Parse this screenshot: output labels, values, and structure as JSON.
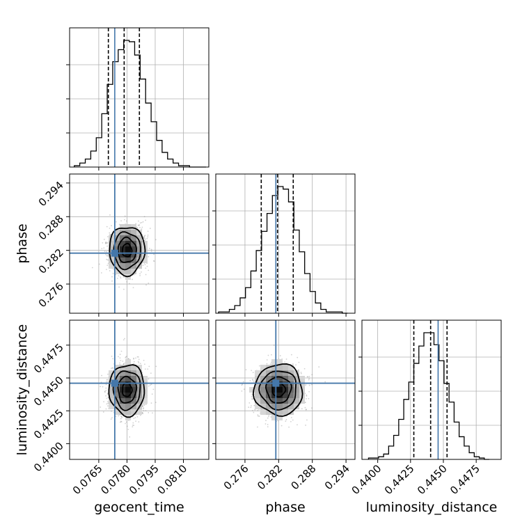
{
  "chart_data": {
    "type": "corner",
    "parameters": [
      "geocent_time",
      "phase",
      "luminosity_distance"
    ],
    "axis_labels": {
      "x": [
        "geocent_time",
        "phase",
        "luminosity_distance"
      ],
      "y_phase": "phase",
      "y_luminosity_distance": "luminosity_distance"
    },
    "ranges": {
      "geocent_time": [
        0.07495,
        0.08235
      ],
      "phase": [
        0.2708,
        0.2956
      ],
      "luminosity_distance": [
        0.4388,
        0.4494
      ]
    },
    "ticks": {
      "geocent_time": {
        "values": [
          0.0765,
          0.078,
          0.0795,
          0.081
        ],
        "labels": [
          "0.0765",
          "0.0780",
          "0.0795",
          "0.0810"
        ]
      },
      "phase": {
        "values": [
          0.276,
          0.282,
          0.288,
          0.294
        ],
        "labels": [
          "0.276",
          "0.282",
          "0.288",
          "0.294"
        ]
      },
      "luminosity_distance": {
        "values": [
          0.44,
          0.4425,
          0.445,
          0.4475
        ],
        "labels": [
          "0.4400",
          "0.4425",
          "0.4450",
          "0.4475"
        ]
      }
    },
    "truths": {
      "geocent_time": 0.07735,
      "phase": 0.2815,
      "luminosity_distance": 0.4446
    },
    "quantiles": {
      "geocent_time": [
        0.07701,
        0.07785,
        0.07866
      ],
      "phase": [
        0.2789,
        0.2818,
        0.2846
      ],
      "luminosity_distance": [
        0.44275,
        0.44403,
        0.44528
      ]
    },
    "histograms": {
      "geocent_time": {
        "edges_range": [
          0.0752,
          0.0822
        ],
        "bins": 24,
        "counts": [
          1,
          3,
          6,
          12,
          22,
          40,
          62,
          79,
          88,
          95,
          94,
          84,
          66,
          48,
          34,
          20,
          11,
          6,
          3,
          1,
          1,
          0,
          0,
          0
        ]
      },
      "phase": {
        "edges_range": [
          0.2713,
          0.2943
        ],
        "bins": 24,
        "counts": [
          1,
          1,
          3,
          6,
          12,
          20,
          33,
          49,
          64,
          78,
          92,
          99,
          97,
          87,
          65,
          48,
          31,
          17,
          8,
          3,
          1,
          1,
          1,
          0
        ]
      },
      "luminosity_distance": {
        "edges_range": [
          0.4393,
          0.4485
        ],
        "bins": 24,
        "counts": [
          1,
          1,
          2,
          4,
          10,
          18,
          30,
          45,
          58,
          72,
          85,
          95,
          95,
          86,
          74,
          57,
          43,
          28,
          17,
          10,
          5,
          2,
          1,
          0
        ]
      }
    },
    "density": {
      "phase_vs_geocent_time": {
        "mean": [
          0.078,
          0.282
        ],
        "std": [
          0.00046,
          0.0021
        ]
      },
      "luminosity_distance_vs_geocent_time": {
        "mean": [
          0.078,
          0.4441
        ],
        "std": [
          0.00046,
          0.00095
        ]
      },
      "luminosity_distance_vs_phase": {
        "mean": [
          0.282,
          0.4441
        ],
        "std": [
          0.0021,
          0.00095
        ]
      }
    },
    "grid": true,
    "colors": {
      "truth": "#4477aa",
      "hist": "#000000",
      "grid": "#b0b0b0"
    }
  }
}
